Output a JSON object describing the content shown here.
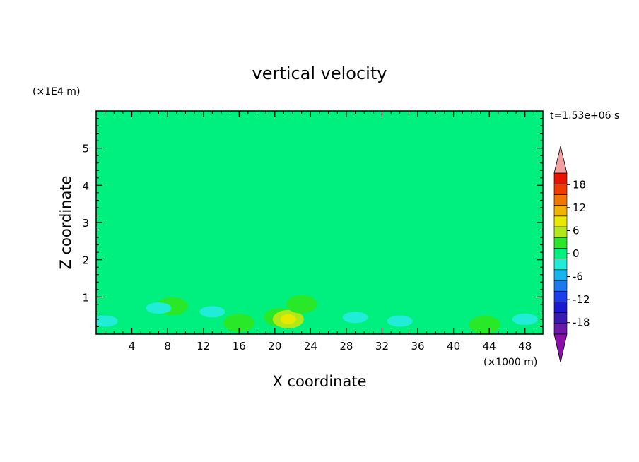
{
  "chart_data": {
    "type": "heatmap",
    "title": "vertical velocity",
    "xlabel": "X coordinate",
    "ylabel": "Z coordinate",
    "x_unit": "(×1000 m)",
    "y_unit": "(×1E4 m)",
    "time_label": "t=1.53e+06 s",
    "xlim": [
      0,
      50
    ],
    "ylim": [
      0,
      6
    ],
    "x_ticks": [
      4,
      8,
      12,
      16,
      20,
      24,
      28,
      32,
      36,
      40,
      44,
      48
    ],
    "y_ticks": [
      1,
      2,
      3,
      4,
      5
    ],
    "colorbar": {
      "labels": [
        "18",
        "12",
        "6",
        "0",
        "-6",
        "-12",
        "-18"
      ],
      "label_values": [
        18,
        12,
        6,
        0,
        -6,
        -12,
        -18
      ],
      "levels": [
        -21,
        -18,
        -15,
        -12,
        -9,
        -6,
        -3,
        0,
        3,
        6,
        9,
        12,
        15,
        18,
        21
      ],
      "colors": [
        "#6a1aa8",
        "#3a1ab4",
        "#1a1ad2",
        "#1c3cf0",
        "#1e78f0",
        "#18b4f0",
        "#20ecd8",
        "#00f080",
        "#28e828",
        "#b0e818",
        "#e8e800",
        "#f0b400",
        "#f07800",
        "#f03c00",
        "#e81400"
      ],
      "under_color": "#8a10a8",
      "over_color": "#f0a0a0"
    },
    "background_value_color": "#00f080",
    "positive_color": "#28e828",
    "bands": [
      {
        "z": 0.15,
        "x_start": 0,
        "x_end": 50,
        "value": 1
      },
      {
        "z": 0.6,
        "x_start": 0,
        "x_end": 50,
        "value": 1
      },
      {
        "z": 1.3,
        "x_start": 0,
        "x_end": 50,
        "value": 1
      },
      {
        "z": 1.9,
        "x_start": 0,
        "x_end": 50,
        "value": 1
      },
      {
        "z": 2.5,
        "x_start": 0,
        "x_end": 50,
        "value": 1
      },
      {
        "z": 3.1,
        "x_start": 0,
        "x_end": 50,
        "value": 1
      },
      {
        "z": 3.7,
        "x_start": 0,
        "x_end": 50,
        "value": 1
      },
      {
        "z": 4.3,
        "x_start": 0,
        "x_end": 50,
        "value": 1
      },
      {
        "z": 5.0,
        "x_start": 0,
        "x_end": 50,
        "value": 1
      },
      {
        "z": 5.6,
        "x_start": 0,
        "x_end": 40,
        "value": 1
      }
    ],
    "features": [
      {
        "x": 20.5,
        "z": 0.45,
        "value": 5
      },
      {
        "x": 21.5,
        "z": 0.4,
        "value": 8
      },
      {
        "x": 16,
        "z": 0.3,
        "value": 5
      },
      {
        "x": 43.5,
        "z": 0.25,
        "value": 5
      },
      {
        "x": 8.5,
        "z": 0.75,
        "value": 5
      },
      {
        "x": 23,
        "z": 0.8,
        "value": 5
      },
      {
        "x": 7,
        "z": 0.7,
        "value": -2
      },
      {
        "x": 13,
        "z": 0.6,
        "value": -2
      },
      {
        "x": 29,
        "z": 0.45,
        "value": -2
      },
      {
        "x": 34,
        "z": 0.35,
        "value": -2
      },
      {
        "x": 48,
        "z": 0.4,
        "value": -3
      },
      {
        "x": 1,
        "z": 0.35,
        "value": -2
      }
    ]
  }
}
